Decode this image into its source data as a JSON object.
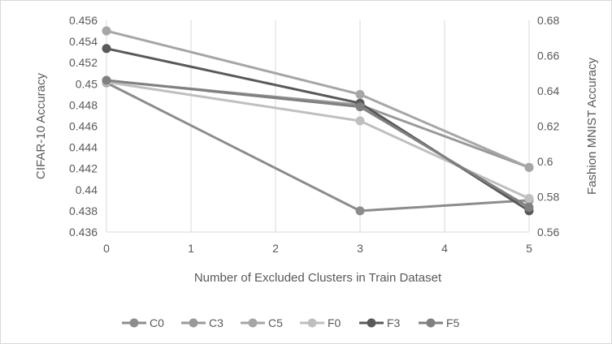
{
  "chart_data": {
    "type": "line",
    "xlabel": "Number  of Excluded Clusters in Train Dataset",
    "ylabel_left": "CIFAR-10 Accuracy",
    "ylabel_right": "Fashion MNIST Accuracy",
    "x_ticks": [
      0,
      1,
      2,
      3,
      4,
      5
    ],
    "x_tick_labels": [
      "0",
      "1",
      "2",
      "3",
      "4",
      "5"
    ],
    "xlim": [
      0,
      5
    ],
    "ylim_left": [
      0.436,
      0.456
    ],
    "ylim_right": [
      0.56,
      0.68
    ],
    "y_left_ticks": [
      0.436,
      0.438,
      0.44,
      0.442,
      0.444,
      0.446,
      0.448,
      0.45,
      0.452,
      0.454,
      0.456
    ],
    "y_left_tick_labels": [
      "0.436",
      "0.438",
      "0.44",
      "0.442",
      "0.444",
      "0.446",
      "0.448",
      "0.45",
      "0.452",
      "0.454",
      "0.456"
    ],
    "y_right_ticks": [
      0.56,
      0.58,
      0.6,
      0.62,
      0.64,
      0.66,
      0.68
    ],
    "y_right_tick_labels": [
      "0.56",
      "0.58",
      "0.6",
      "0.62",
      "0.64",
      "0.66",
      "0.68"
    ],
    "grid": "vertical",
    "legend_position": "bottom",
    "series": [
      {
        "name": "C0",
        "axis": "left",
        "color": "#8c8c8c",
        "x": [
          0,
          3,
          5
        ],
        "y": [
          0.4501,
          0.438,
          0.439
        ]
      },
      {
        "name": "C3",
        "axis": "left",
        "color": "#999999",
        "x": [
          0,
          3,
          5
        ],
        "y": [
          0.4503,
          0.448,
          0.4421
        ]
      },
      {
        "name": "C5",
        "axis": "left",
        "color": "#a6a6a6",
        "x": [
          0,
          3,
          5
        ],
        "y": [
          0.455,
          0.449,
          0.4421
        ]
      },
      {
        "name": "F0",
        "axis": "right",
        "color": "#bfbfbf",
        "x": [
          0,
          3,
          5
        ],
        "y": [
          0.645,
          0.623,
          0.579
        ]
      },
      {
        "name": "F3",
        "axis": "right",
        "color": "#595959",
        "x": [
          0,
          3,
          5
        ],
        "y": [
          0.664,
          0.633,
          0.572
        ]
      },
      {
        "name": "F5",
        "axis": "right",
        "color": "#808080",
        "x": [
          0,
          3,
          5
        ],
        "y": [
          0.646,
          0.631,
          0.574
        ]
      }
    ]
  }
}
